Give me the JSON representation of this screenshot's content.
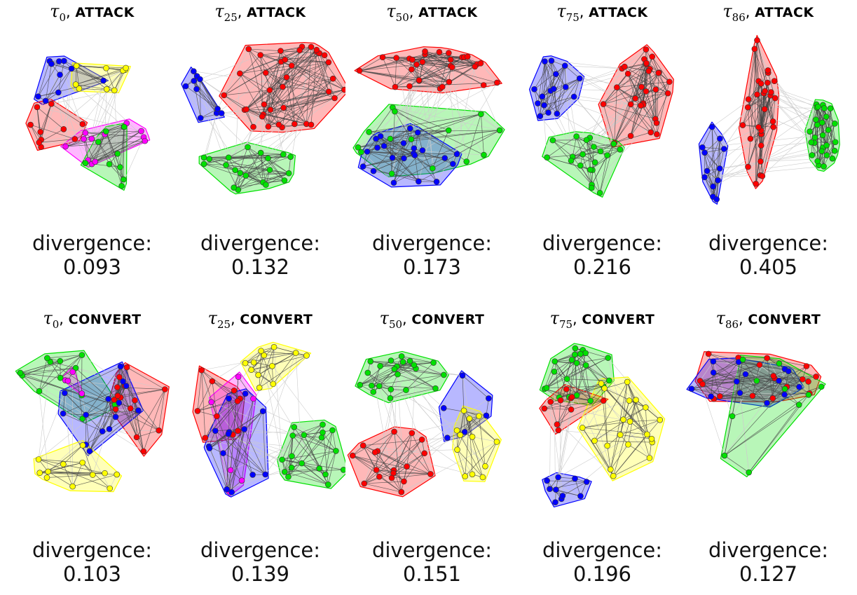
{
  "colors": {
    "red": "#ff0000",
    "blue": "#0000ff",
    "yellow": "#ffff00",
    "green": "#00e000",
    "magenta": "#ff00ff"
  },
  "divergence_label": "divergence:",
  "rows": [
    {
      "method": "ATTACK",
      "panels": [
        {
          "tau_sub": "0",
          "divergence": "0.093",
          "communities": [
            "blue",
            "yellow",
            "red",
            "magenta",
            "green"
          ]
        },
        {
          "tau_sub": "25",
          "divergence": "0.132",
          "communities": [
            "red",
            "blue",
            "green"
          ]
        },
        {
          "tau_sub": "50",
          "divergence": "0.173",
          "communities": [
            "red",
            "green",
            "blue"
          ]
        },
        {
          "tau_sub": "75",
          "divergence": "0.216",
          "communities": [
            "blue",
            "red",
            "green"
          ]
        },
        {
          "tau_sub": "86",
          "divergence": "0.405",
          "communities": [
            "blue",
            "red",
            "green"
          ]
        }
      ]
    },
    {
      "method": "CONVERT",
      "panels": [
        {
          "tau_sub": "0",
          "divergence": "0.103",
          "communities": [
            "green",
            "red",
            "blue",
            "magenta",
            "yellow"
          ]
        },
        {
          "tau_sub": "25",
          "divergence": "0.139",
          "communities": [
            "yellow",
            "red",
            "magenta",
            "blue",
            "green"
          ]
        },
        {
          "tau_sub": "50",
          "divergence": "0.151",
          "communities": [
            "green",
            "blue",
            "red",
            "yellow"
          ]
        },
        {
          "tau_sub": "75",
          "divergence": "0.196",
          "communities": [
            "green",
            "red",
            "yellow",
            "blue"
          ]
        },
        {
          "tau_sub": "86",
          "divergence": "0.127",
          "communities": [
            "red",
            "blue",
            "green"
          ]
        }
      ]
    }
  ]
}
